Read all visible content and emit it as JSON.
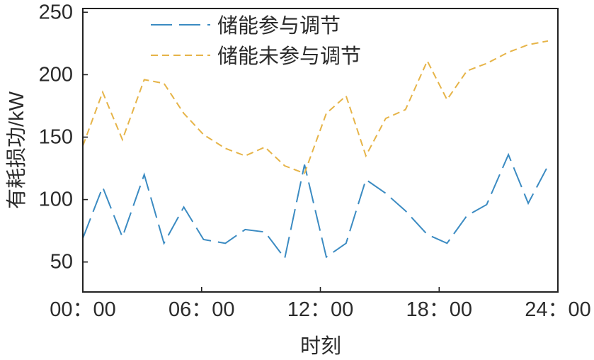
{
  "chart_data": {
    "type": "line",
    "title": "",
    "xlabel": "时刻",
    "ylabel": "有耗损功/kW",
    "xlim": [
      0,
      24
    ],
    "ylim": [
      26,
      253
    ],
    "x_ticks": [
      0,
      6,
      12,
      18,
      24
    ],
    "x_tick_labels": [
      "00：00",
      "06：00",
      "12：00",
      "18：00",
      "24：00"
    ],
    "y_ticks": [
      50,
      100,
      150,
      200,
      250
    ],
    "y_tick_labels": [
      "50",
      "100",
      "150",
      "200",
      "250"
    ],
    "grid": false,
    "legend_position": "upper-center",
    "x": [
      0,
      1.0,
      2.0,
      3.1,
      4.1,
      5.1,
      6.1,
      7.2,
      8.2,
      9.2,
      10.2,
      11.2,
      12.3,
      13.3,
      14.3,
      15.3,
      16.3,
      17.4,
      18.4,
      19.4,
      20.4,
      21.5,
      22.5,
      23.5
    ],
    "series": [
      {
        "name": "储能参与调节",
        "color": "#3b8bc2",
        "values": [
          69,
          110,
          70,
          120,
          65,
          94,
          68,
          65,
          76,
          74,
          53,
          128,
          54,
          65,
          116,
          105,
          91,
          72,
          65,
          87,
          96,
          136,
          97,
          127
        ]
      },
      {
        "name": "储能未参与调节",
        "color": "#e6b448",
        "values": [
          143,
          186,
          148,
          196,
          193,
          169,
          152,
          141,
          135,
          142,
          127,
          121,
          169,
          183,
          135,
          165,
          172,
          211,
          180,
          203,
          209,
          218,
          224,
          227
        ]
      }
    ]
  }
}
